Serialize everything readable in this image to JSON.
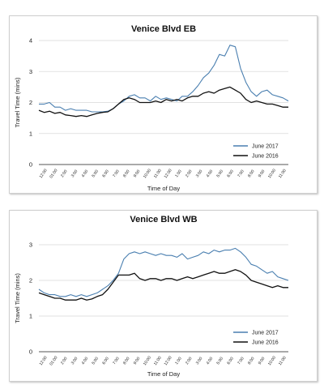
{
  "chart_data": [
    {
      "type": "line",
      "title": "Venice Blvd EB",
      "xlabel": "Time of Day",
      "ylabel": "Travel Time (mins)",
      "ylim": [
        0,
        4
      ],
      "yticks": [
        "0",
        "1",
        "2",
        "3",
        "4"
      ],
      "x_ticks": [
        "12:00",
        "01:00",
        "2:00",
        "3:00",
        "4:00",
        "5:00",
        "6:00",
        "7:00",
        "8:00",
        "9:00",
        "10:00",
        "11:00",
        "12:00",
        "1:00",
        "2:00",
        "3:00",
        "4:00",
        "5:00",
        "6:00",
        "7:00",
        "8:00",
        "9:00",
        "10:00",
        "11:00"
      ],
      "legend_position": "bottom-right",
      "grid": "horizontal",
      "series": [
        {
          "name": "June 2017",
          "color": "#4a7fb0",
          "values": [
            1.95,
            1.95,
            2.0,
            1.85,
            1.85,
            1.75,
            1.8,
            1.75,
            1.75,
            1.75,
            1.7,
            1.7,
            1.7,
            1.72,
            1.8,
            1.95,
            2.05,
            2.2,
            2.25,
            2.15,
            2.15,
            2.05,
            2.2,
            2.1,
            2.15,
            2.1,
            2.05,
            2.2,
            2.2,
            2.35,
            2.55,
            2.8,
            2.95,
            3.2,
            3.55,
            3.5,
            3.85,
            3.8,
            3.1,
            2.65,
            2.35,
            2.2,
            2.35,
            2.4,
            2.25,
            2.2,
            2.15,
            2.05
          ]
        },
        {
          "name": "June 2016",
          "color": "#111111",
          "values": [
            1.75,
            1.68,
            1.72,
            1.65,
            1.68,
            1.6,
            1.58,
            1.55,
            1.58,
            1.55,
            1.6,
            1.65,
            1.68,
            1.7,
            1.8,
            1.95,
            2.1,
            2.15,
            2.1,
            2.0,
            2.0,
            2.0,
            2.05,
            2.0,
            2.1,
            2.05,
            2.1,
            2.05,
            2.15,
            2.2,
            2.2,
            2.3,
            2.35,
            2.3,
            2.4,
            2.45,
            2.5,
            2.4,
            2.3,
            2.1,
            2.0,
            2.05,
            2.0,
            1.95,
            1.95,
            1.9,
            1.85,
            1.85
          ]
        }
      ]
    },
    {
      "type": "line",
      "title": "Venice Blvd WB",
      "xlabel": "Time of Day",
      "ylabel": "Travel Time (mins)",
      "ylim": [
        0,
        3
      ],
      "yticks": [
        "0",
        "1",
        "2",
        "3"
      ],
      "x_ticks": [
        "12:00",
        "01:00",
        "2:00",
        "3:00",
        "4:00",
        "5:00",
        "6:00",
        "7:00",
        "8:00",
        "9:00",
        "10:00",
        "11:00",
        "12:00",
        "1:00",
        "2:00",
        "3:00",
        "4:00",
        "5:00",
        "6:00",
        "7:00",
        "8:00",
        "9:00",
        "10:00",
        "11:00"
      ],
      "legend_position": "bottom-right",
      "grid": "horizontal",
      "series": [
        {
          "name": "June 2017",
          "color": "#4a7fb0",
          "values": [
            1.75,
            1.65,
            1.6,
            1.6,
            1.55,
            1.55,
            1.6,
            1.55,
            1.6,
            1.55,
            1.6,
            1.65,
            1.75,
            1.85,
            2.0,
            2.2,
            2.6,
            2.75,
            2.8,
            2.75,
            2.8,
            2.75,
            2.7,
            2.75,
            2.7,
            2.7,
            2.65,
            2.75,
            2.6,
            2.65,
            2.7,
            2.8,
            2.75,
            2.85,
            2.8,
            2.85,
            2.85,
            2.9,
            2.8,
            2.65,
            2.45,
            2.4,
            2.3,
            2.2,
            2.25,
            2.1,
            2.05,
            2.0
          ]
        },
        {
          "name": "June 2016",
          "color": "#111111",
          "values": [
            1.65,
            1.6,
            1.55,
            1.5,
            1.5,
            1.45,
            1.45,
            1.45,
            1.5,
            1.45,
            1.48,
            1.55,
            1.6,
            1.75,
            1.95,
            2.15,
            2.15,
            2.15,
            2.2,
            2.05,
            2.0,
            2.05,
            2.05,
            2.0,
            2.05,
            2.05,
            2.0,
            2.05,
            2.1,
            2.05,
            2.1,
            2.15,
            2.2,
            2.25,
            2.2,
            2.2,
            2.25,
            2.3,
            2.25,
            2.15,
            2.0,
            1.95,
            1.9,
            1.85,
            1.8,
            1.85,
            1.8,
            1.8
          ]
        }
      ]
    }
  ]
}
